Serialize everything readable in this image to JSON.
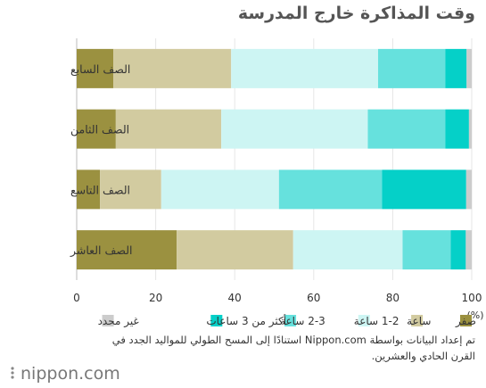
{
  "chart_data": {
    "type": "bar",
    "orientation": "horizontal",
    "stacked": true,
    "title": "وقت المذاكرة خارج المدرسة",
    "unit_label": "(%)",
    "xlim": [
      0,
      100
    ],
    "x_ticks": [
      0,
      20,
      40,
      60,
      80,
      100
    ],
    "grid": true,
    "legend_position": "bottom",
    "categories": [
      "الصف السابع",
      "الصف الثامن",
      "الصف التاسع",
      "الصف العاشر"
    ],
    "series": [
      {
        "name": "صفر",
        "color": "#9b9140",
        "values": [
          9.3,
          9.9,
          5.9,
          25.3
        ]
      },
      {
        "name": "ساعة",
        "color": "#d2cba0",
        "values": [
          29.8,
          26.7,
          15.5,
          29.5
        ]
      },
      {
        "name": "1-2 ساعة",
        "color": "#cdf5f3",
        "values": [
          37.2,
          37.1,
          29.8,
          27.7
        ]
      },
      {
        "name": "2-3 ساعة",
        "color": "#66e1dd",
        "values": [
          17.0,
          19.6,
          26.1,
          12.2
        ]
      },
      {
        "name": "أكثر من 3 ساعات",
        "color": "#05d0c8",
        "values": [
          5.4,
          6.0,
          21.3,
          3.8
        ]
      },
      {
        "name": "غير محدد",
        "color": "#cccccc",
        "values": [
          1.3,
          0.7,
          1.4,
          1.5
        ]
      }
    ]
  },
  "footer": {
    "source_note": "تم إعداد البيانات بواسطة Nippon.com استنادًا إلى المسح الطولي للمواليد الجدد في القرن الحادي والعشرين.",
    "logo_text": "nippon",
    "logo_suffix": ".com"
  }
}
